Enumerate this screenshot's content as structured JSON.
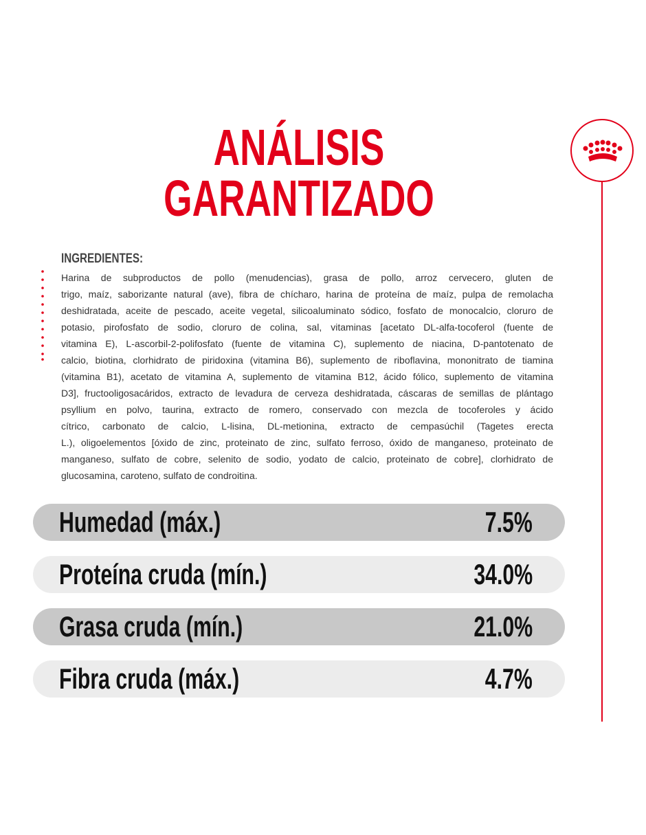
{
  "title": {
    "line1": "ANÁLISIS",
    "line2": "GARANTIZADO"
  },
  "ingredients": {
    "heading": "INGREDIENTES:",
    "lines": [
      "Harina de subproductos de pollo (menudencias), grasa de pollo, arroz cervecero, gluten de",
      "trigo, maíz, saborizante natural (ave), fibra de chícharo, harina de proteína de maíz, pulpa de remolacha",
      "deshidratada, aceite de pescado, aceite vegetal, silicoaluminato sódico, fosfato de monocalcio, cloruro de",
      "potasio, pirofosfato de sodio, cloruro de colina, sal, vitaminas [acetato DL-alfa-tocoferol (fuente de",
      "vitamina E), L-ascorbil-2-polifosfato (fuente de vitamina C), suplemento de niacina, D-pantotenato de",
      "calcio, biotina, clorhidrato de piridoxina (vitamina B6), suplemento de riboflavina, mononitrato de tiamina",
      "(vitamina B1), acetato de vitamina A, suplemento de vitamina B12, ácido fólico, suplemento de vitamina",
      "D3], fructooligosacáridos, extracto de levadura de cerveza deshidratada, cáscaras de semillas de plántago",
      "psyllium en polvo, taurina, extracto de romero, conservado con mezcla de tocoferoles y ácido",
      "cítrico, carbonato de calcio, L-lisina, DL-metionina, extracto de cempasúchil (Tagetes erecta",
      "L.), oligoelementos [óxido de zinc, proteinato de zinc, sulfato ferroso, óxido de manganeso, proteinato de",
      "manganeso, sulfato de cobre, selenito de sodio, yodato de calcio, proteinato de cobre], clorhidrato de",
      "glucosamina, caroteno, sulfato de condroitina."
    ]
  },
  "analysis": [
    {
      "label": "Humedad (máx.)",
      "value": "7.5%"
    },
    {
      "label": "Proteína cruda (mín.)",
      "value": "34.0%"
    },
    {
      "label": "Grasa cruda (mín.)",
      "value": "21.0%"
    },
    {
      "label": "Fibra cruda (máx.)",
      "value": "4.7%"
    }
  ]
}
